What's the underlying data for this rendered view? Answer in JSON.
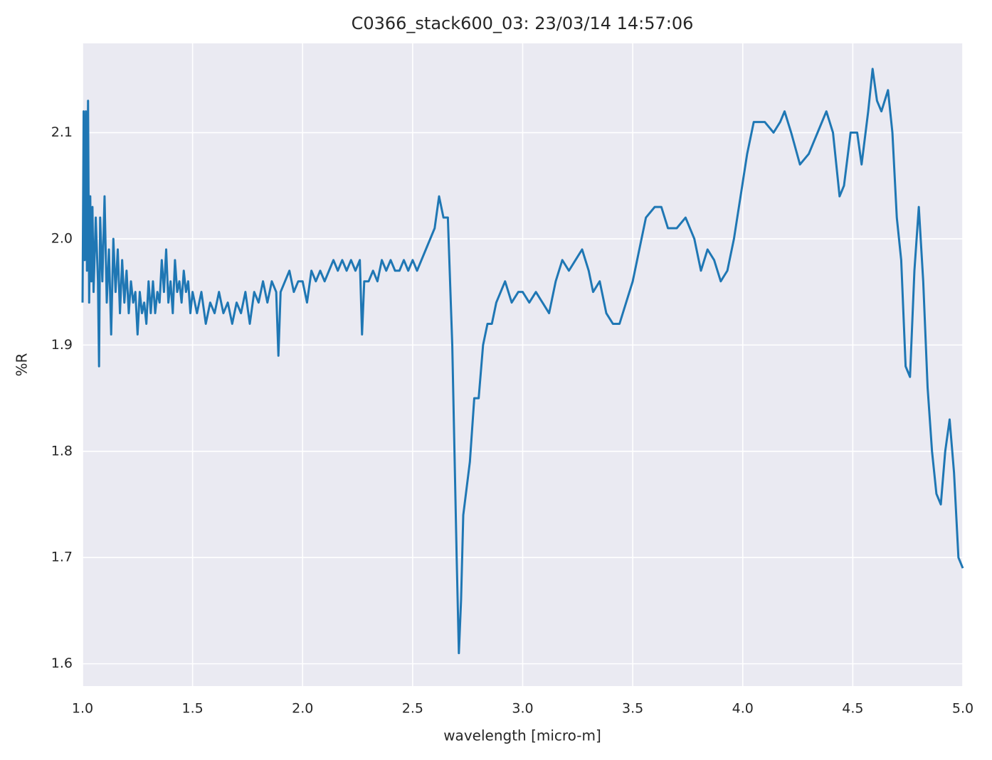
{
  "chart_data": {
    "type": "line",
    "title": "C0366_stack600_03:  23/03/14 14:57:06",
    "xlabel": "wavelength [micro-m]",
    "ylabel": "%R",
    "grid": true,
    "xlim": [
      1,
      5
    ],
    "ylim": [
      1.579,
      2.184
    ],
    "xticks": [
      {
        "value": 1,
        "label": "1.0"
      },
      1.5,
      {
        "value": 2,
        "label": "2.0"
      },
      2.5,
      {
        "value": 3,
        "label": "3.0"
      },
      3.5,
      {
        "value": 4,
        "label": "4.0"
      },
      4.5,
      {
        "value": 5,
        "label": "5.0"
      }
    ],
    "yticks": [
      1.6,
      1.7,
      1.8,
      1.9,
      {
        "value": 2,
        "label": "2.0"
      },
      2.1
    ],
    "series": [
      {
        "color": "#1f77b4",
        "x": [
          1.0,
          1.005,
          1.01,
          1.015,
          1.02,
          1.025,
          1.03,
          1.035,
          1.04,
          1.045,
          1.05,
          1.06,
          1.07,
          1.075,
          1.08,
          1.09,
          1.1,
          1.11,
          1.12,
          1.13,
          1.14,
          1.15,
          1.16,
          1.17,
          1.18,
          1.19,
          1.2,
          1.21,
          1.22,
          1.23,
          1.24,
          1.25,
          1.26,
          1.27,
          1.28,
          1.29,
          1.3,
          1.31,
          1.32,
          1.33,
          1.34,
          1.35,
          1.36,
          1.37,
          1.38,
          1.39,
          1.4,
          1.41,
          1.42,
          1.43,
          1.44,
          1.45,
          1.46,
          1.47,
          1.48,
          1.49,
          1.5,
          1.52,
          1.54,
          1.56,
          1.58,
          1.6,
          1.62,
          1.64,
          1.66,
          1.68,
          1.7,
          1.72,
          1.74,
          1.76,
          1.78,
          1.8,
          1.82,
          1.84,
          1.86,
          1.88,
          1.89,
          1.9,
          1.92,
          1.94,
          1.96,
          1.98,
          2.0,
          2.02,
          2.04,
          2.06,
          2.08,
          2.1,
          2.12,
          2.14,
          2.16,
          2.18,
          2.2,
          2.22,
          2.24,
          2.26,
          2.27,
          2.28,
          2.3,
          2.32,
          2.34,
          2.36,
          2.38,
          2.4,
          2.42,
          2.44,
          2.46,
          2.48,
          2.5,
          2.52,
          2.54,
          2.56,
          2.58,
          2.6,
          2.62,
          2.64,
          2.66,
          2.68,
          2.7,
          2.71,
          2.72,
          2.73,
          2.76,
          2.78,
          2.8,
          2.82,
          2.84,
          2.86,
          2.88,
          2.9,
          2.92,
          2.95,
          2.98,
          3.0,
          3.03,
          3.06,
          3.09,
          3.12,
          3.15,
          3.18,
          3.21,
          3.24,
          3.27,
          3.3,
          3.32,
          3.35,
          3.38,
          3.41,
          3.44,
          3.47,
          3.5,
          3.53,
          3.56,
          3.6,
          3.63,
          3.66,
          3.7,
          3.74,
          3.78,
          3.81,
          3.84,
          3.87,
          3.9,
          3.93,
          3.96,
          3.99,
          4.02,
          4.05,
          4.1,
          4.14,
          4.17,
          4.19,
          4.22,
          4.26,
          4.3,
          4.34,
          4.38,
          4.41,
          4.44,
          4.46,
          4.49,
          4.52,
          4.54,
          4.57,
          4.59,
          4.61,
          4.63,
          4.66,
          4.68,
          4.7,
          4.72,
          4.74,
          4.76,
          4.78,
          4.8,
          4.82,
          4.84,
          4.86,
          4.88,
          4.9,
          4.92,
          4.94,
          4.96,
          4.98,
          5.0
        ],
        "values": [
          1.94,
          2.12,
          1.98,
          2.12,
          1.97,
          2.13,
          1.94,
          2.04,
          1.96,
          2.03,
          1.95,
          2.02,
          1.96,
          1.88,
          2.02,
          1.96,
          2.04,
          1.94,
          1.99,
          1.91,
          2.0,
          1.95,
          1.99,
          1.93,
          1.98,
          1.94,
          1.97,
          1.93,
          1.96,
          1.94,
          1.95,
          1.91,
          1.95,
          1.93,
          1.94,
          1.92,
          1.96,
          1.93,
          1.96,
          1.93,
          1.95,
          1.94,
          1.98,
          1.95,
          1.99,
          1.94,
          1.96,
          1.93,
          1.98,
          1.95,
          1.96,
          1.94,
          1.97,
          1.95,
          1.96,
          1.93,
          1.95,
          1.93,
          1.95,
          1.92,
          1.94,
          1.93,
          1.95,
          1.93,
          1.94,
          1.92,
          1.94,
          1.93,
          1.95,
          1.92,
          1.95,
          1.94,
          1.96,
          1.94,
          1.96,
          1.95,
          1.89,
          1.95,
          1.96,
          1.97,
          1.95,
          1.96,
          1.96,
          1.94,
          1.97,
          1.96,
          1.97,
          1.96,
          1.97,
          1.98,
          1.97,
          1.98,
          1.97,
          1.98,
          1.97,
          1.98,
          1.91,
          1.96,
          1.96,
          1.97,
          1.96,
          1.98,
          1.97,
          1.98,
          1.97,
          1.97,
          1.98,
          1.97,
          1.98,
          1.97,
          1.98,
          1.99,
          2.0,
          2.01,
          2.04,
          2.02,
          2.02,
          1.9,
          1.7,
          1.61,
          1.66,
          1.74,
          1.79,
          1.85,
          1.85,
          1.9,
          1.92,
          1.92,
          1.94,
          1.95,
          1.96,
          1.94,
          1.95,
          1.95,
          1.94,
          1.95,
          1.94,
          1.93,
          1.96,
          1.98,
          1.97,
          1.98,
          1.99,
          1.97,
          1.95,
          1.96,
          1.93,
          1.92,
          1.92,
          1.94,
          1.96,
          1.99,
          2.02,
          2.03,
          2.03,
          2.01,
          2.01,
          2.02,
          2.0,
          1.97,
          1.99,
          1.98,
          1.96,
          1.97,
          2.0,
          2.04,
          2.08,
          2.11,
          2.11,
          2.1,
          2.11,
          2.12,
          2.1,
          2.07,
          2.08,
          2.1,
          2.12,
          2.1,
          2.04,
          2.05,
          2.1,
          2.1,
          2.07,
          2.12,
          2.16,
          2.13,
          2.12,
          2.14,
          2.1,
          2.02,
          1.98,
          1.88,
          1.87,
          1.97,
          2.03,
          1.96,
          1.86,
          1.8,
          1.76,
          1.75,
          1.8,
          1.83,
          1.78,
          1.7,
          1.69
        ]
      }
    ]
  }
}
